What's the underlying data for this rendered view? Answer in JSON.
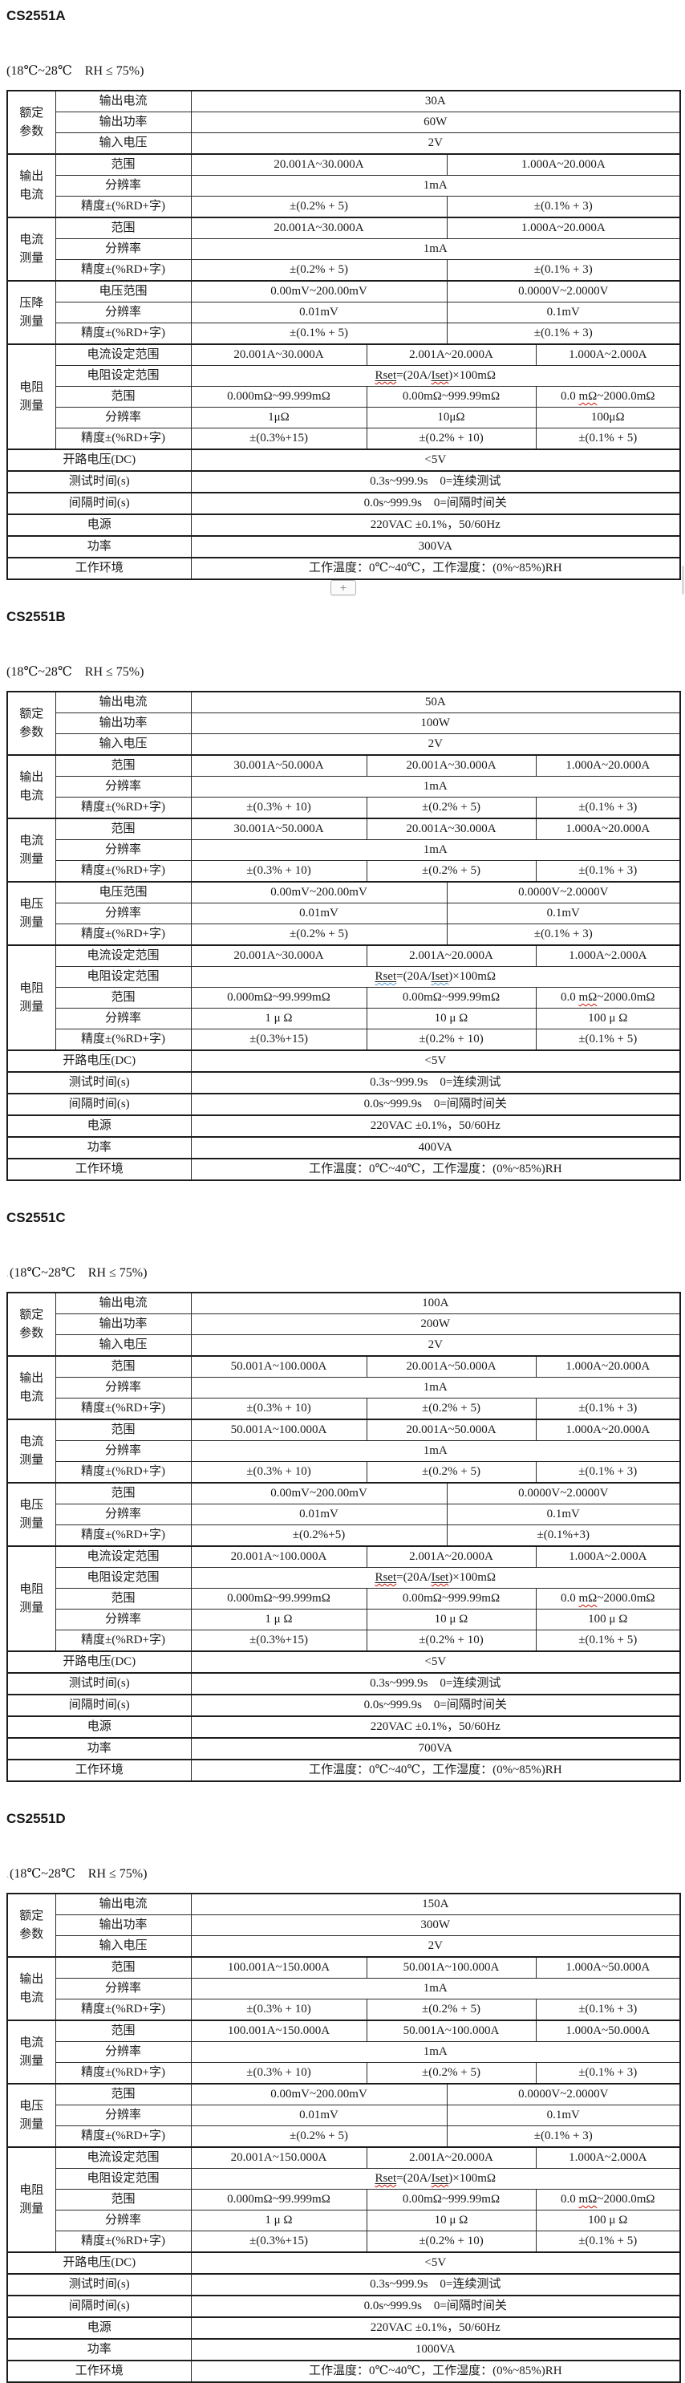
{
  "page": {
    "plus_button_label": "+",
    "edge_artifact": "scroll-fragment"
  },
  "labels": {
    "group_rated": "额定参数",
    "group_output_current": "输出电流",
    "group_current_measure": "电流测量",
    "group_resistance": "电阻测量",
    "range": "范围",
    "resolution": "分辨率",
    "accuracy": "精度±(%RD+字)",
    "current_set_range": "电流设定范围",
    "resistance_set_range": "电阻设定范围",
    "open_voltage": "开路电压(DC)",
    "test_time": "测试时间(s)",
    "interval_time": "间隔时间(s)",
    "power_supply": "电源",
    "power": "功率",
    "environment": "工作环境"
  },
  "common": {
    "open_voltage": "<5V",
    "test_time": "0.3s~999.9s　0=连续测试",
    "interval_time": "0.0s~999.9s　0=间隔时间关",
    "power_supply": "220VAC ±0.1%，50/60Hz",
    "environment": "工作温度：0℃~40℃，工作湿度：(0%~85%)RH",
    "formula": {
      "u1": "Rset",
      "mid": "=(20A/",
      "u2": "Iset",
      "post": ")×100mΩ"
    },
    "res_range_3": {
      "a": "0.0 ",
      "wavy": "mΩ",
      "b": "~2000.0mΩ"
    },
    "res_ranges_12": [
      "0.000mΩ~99.999mΩ",
      "0.00mΩ~999.99mΩ"
    ],
    "res_accuracies": [
      "±(0.3%+15)",
      "±(0.2% + 10)",
      "±(0.1% + 5)"
    ]
  },
  "sections": [
    {
      "id": "A",
      "title": "CS2551A",
      "subtitle_prefix": "",
      "subtitle": "(18℃~28℃　RH ≤ 75%)",
      "rated_rows": [
        [
          "输出电流",
          "30A"
        ],
        [
          "输出功率",
          "60W"
        ],
        [
          "输入电压",
          "2V"
        ]
      ],
      "output_current": {
        "ranges": [
          "20.001A~30.000A",
          "1.000A~20.000A"
        ],
        "resolution": "1mA",
        "accuracies": [
          "±(0.2% + 5)",
          "±(0.1% + 3)"
        ]
      },
      "current_measure": {
        "ranges": [
          "20.001A~30.000A",
          "1.000A~20.000A"
        ],
        "resolution": "1mA",
        "accuracies": [
          "±(0.2% + 5)",
          "±(0.1% + 3)"
        ]
      },
      "voltage": {
        "group": "压降测量",
        "range_label": "电压范围",
        "ranges": [
          "0.00mV~200.00mV",
          "0.0000V~2.0000V"
        ],
        "resolutions": [
          "0.01mV",
          "0.1mV"
        ],
        "accuracies": [
          "±(0.1% + 5)",
          "±(0.1% + 3)"
        ]
      },
      "resistance": {
        "set_ranges": [
          "20.001A~30.000A",
          "2.001A~20.000A",
          "1.000A~2.000A"
        ],
        "resolutions": [
          "1μΩ",
          "10μΩ",
          "100μΩ"
        ]
      },
      "power": "300VA",
      "wavy_color": "#cc1100",
      "plus_button": true
    },
    {
      "id": "B",
      "title": "CS2551B",
      "subtitle_prefix": "",
      "subtitle": "(18℃~28℃　RH ≤ 75%)",
      "rated_rows": [
        [
          "输出电流",
          "50A"
        ],
        [
          "输出功率",
          "100W"
        ],
        [
          "输入电压",
          "2V"
        ]
      ],
      "output_current": {
        "ranges": [
          "30.001A~50.000A",
          "20.001A~30.000A",
          "1.000A~20.000A"
        ],
        "resolution": "1mA",
        "accuracies": [
          "±(0.3% + 10)",
          "±(0.2% + 5)",
          "±(0.1% + 3)"
        ]
      },
      "current_measure": {
        "ranges": [
          "30.001A~50.000A",
          "20.001A~30.000A",
          "1.000A~20.000A"
        ],
        "resolution": "1mA",
        "accuracies": [
          "±(0.3% + 10)",
          "±(0.2% + 5)",
          "±(0.1% + 3)"
        ]
      },
      "voltage": {
        "group": "电压测量",
        "range_label": "电压范围",
        "ranges": [
          "0.00mV~200.00mV",
          "0.0000V~2.0000V"
        ],
        "resolutions": [
          "0.01mV",
          "0.1mV"
        ],
        "accuracies": [
          "±(0.2% + 5)",
          "±(0.1% + 3)"
        ]
      },
      "resistance": {
        "set_ranges": [
          "20.001A~30.000A",
          "2.001A~20.000A",
          "1.000A~2.000A"
        ],
        "resolutions": [
          "1 μ Ω",
          "10 μ Ω",
          "100 μ Ω"
        ]
      },
      "power": "400VA",
      "wavy_color": "#4f9bd8",
      "plus_button": false
    },
    {
      "id": "C",
      "title": "CS2551C",
      "subtitle_prefix": ".",
      "subtitle": "(18℃~28℃　RH ≤ 75%)",
      "rated_rows": [
        [
          "输出电流",
          "100A"
        ],
        [
          "输出功率",
          "200W"
        ],
        [
          "输入电压",
          "2V"
        ]
      ],
      "output_current": {
        "ranges": [
          "50.001A~100.000A",
          "20.001A~50.000A",
          "1.000A~20.000A"
        ],
        "resolution": "1mA",
        "accuracies": [
          "±(0.3% + 10)",
          "±(0.2% + 5)",
          "±(0.1% + 3)"
        ]
      },
      "current_measure": {
        "ranges": [
          "50.001A~100.000A",
          "20.001A~50.000A",
          "1.000A~20.000A"
        ],
        "resolution": "1mA",
        "accuracies": [
          "±(0.3% + 10)",
          "±(0.2% + 5)",
          "±(0.1% + 3)"
        ]
      },
      "voltage": {
        "group": "电压测量",
        "range_label": "范围",
        "ranges": [
          "0.00mV~200.00mV",
          "0.0000V~2.0000V"
        ],
        "resolutions": [
          "0.01mV",
          "0.1mV"
        ],
        "accuracies": [
          "±(0.2%+5)",
          "±(0.1%+3)"
        ]
      },
      "resistance": {
        "set_ranges": [
          "20.001A~100.000A",
          "2.001A~20.000A",
          "1.000A~2.000A"
        ],
        "resolutions": [
          "1 μ Ω",
          "10 μ Ω",
          "100 μ Ω"
        ]
      },
      "power": "700VA",
      "wavy_color": "#cc1100",
      "plus_button": false
    },
    {
      "id": "D",
      "title": "CS2551D",
      "subtitle_prefix": ".",
      "subtitle": "(18℃~28℃　RH ≤ 75%)",
      "rated_rows": [
        [
          "输出电流",
          "150A"
        ],
        [
          "输出功率",
          "300W"
        ],
        [
          "输入电压",
          "2V"
        ]
      ],
      "output_current": {
        "ranges": [
          "100.001A~150.000A",
          "50.001A~100.000A",
          "1.000A~50.000A"
        ],
        "resolution": "1mA",
        "accuracies": [
          "±(0.3% + 10)",
          "±(0.2% + 5)",
          "±(0.1% + 3)"
        ]
      },
      "current_measure": {
        "ranges": [
          "100.001A~150.000A",
          "50.001A~100.000A",
          "1.000A~50.000A"
        ],
        "resolution": "1mA",
        "accuracies": [
          "±(0.3% + 10)",
          "±(0.2% + 5)",
          "±(0.1% + 3)"
        ]
      },
      "voltage": {
        "group": "电压测量",
        "range_label": "范围",
        "ranges": [
          "0.00mV~200.00mV",
          "0.0000V~2.0000V"
        ],
        "resolutions": [
          "0.01mV",
          "0.1mV"
        ],
        "accuracies": [
          "±(0.2% + 5)",
          "±(0.1% + 3)"
        ]
      },
      "resistance": {
        "set_ranges": [
          "20.001A~150.000A",
          "2.001A~20.000A",
          "1.000A~2.000A"
        ],
        "resolutions": [
          "1 μ Ω",
          "10 μ Ω",
          "100 μ Ω"
        ]
      },
      "power": "1000VA",
      "wavy_color": "#cc1100",
      "plus_button": false
    }
  ]
}
